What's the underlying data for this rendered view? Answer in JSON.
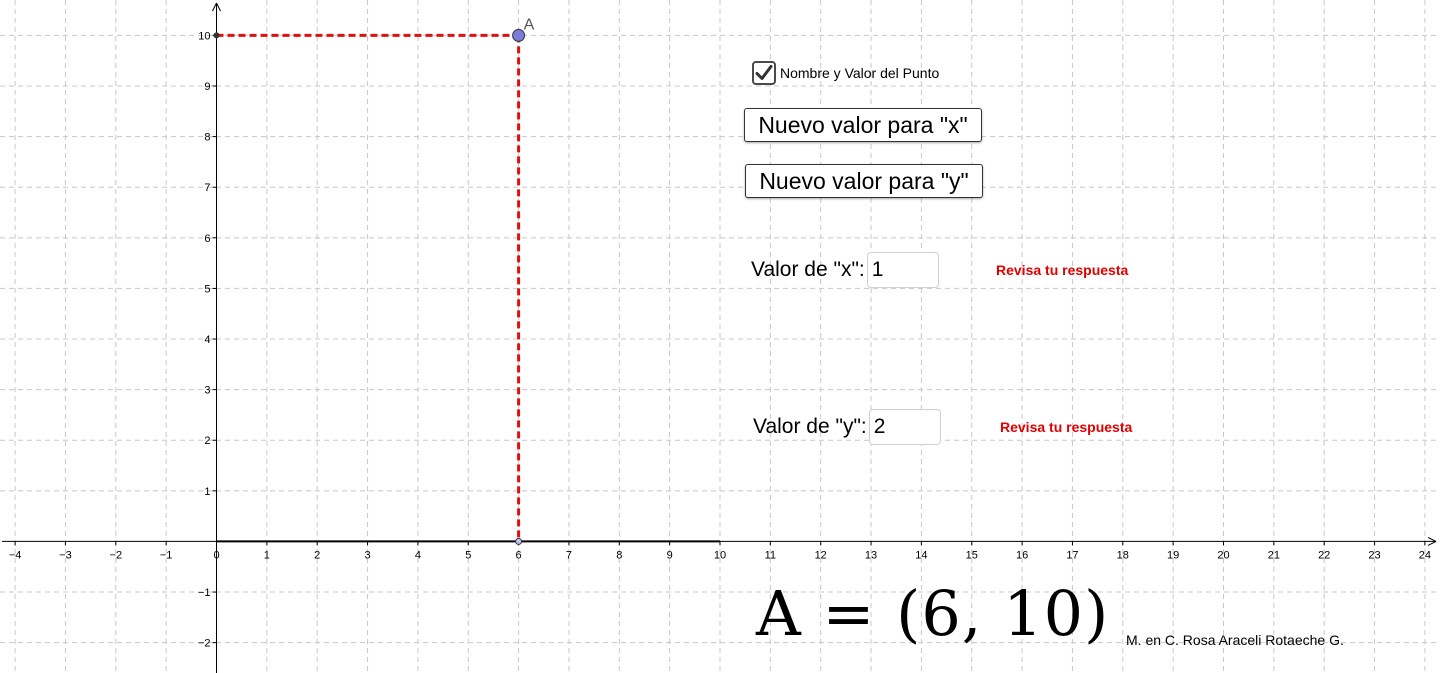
{
  "graph": {
    "x_range": [
      -4.3,
      24.3
    ],
    "y_range": [
      -2.6,
      10.7
    ],
    "x_tick_labels": [
      "−4",
      "−3",
      "−2",
      "−1",
      "0",
      "1",
      "2",
      "3",
      "4",
      "5",
      "6",
      "7",
      "8",
      "9",
      "10",
      "11",
      "12",
      "13",
      "14",
      "15",
      "16",
      "17",
      "18",
      "19",
      "20",
      "21",
      "22",
      "23",
      "24"
    ],
    "x_tick_values": [
      -4,
      -3,
      -2,
      -1,
      0,
      1,
      2,
      3,
      4,
      5,
      6,
      7,
      8,
      9,
      10,
      11,
      12,
      13,
      14,
      15,
      16,
      17,
      18,
      19,
      20,
      21,
      22,
      23,
      24
    ],
    "y_tick_labels": [
      "−2",
      "−1",
      "1",
      "2",
      "3",
      "4",
      "5",
      "6",
      "7",
      "8",
      "9",
      "10"
    ],
    "y_tick_values": [
      -2,
      -1,
      1,
      2,
      3,
      4,
      5,
      6,
      7,
      8,
      9,
      10
    ],
    "grid": true,
    "grid_style": "dashed",
    "point": {
      "name": "A",
      "x": 6,
      "y": 10
    },
    "point_color": "#7b7bdc",
    "guide_color": "#e01010",
    "positive_axis_max": 10
  },
  "controls": {
    "checkbox_label": "Nombre y Valor del Punto",
    "checkbox_checked": true,
    "new_x_button": "Nuevo valor para \"x\"",
    "new_y_button": "Nuevo valor para \"y\"",
    "x_label": "Valor de \"x\":",
    "x_value": "1",
    "y_label": "Valor de \"y\":",
    "y_value": "2",
    "feedback_x": "Revisa tu respuesta",
    "feedback_y": "Revisa tu respuesta"
  },
  "readout": {
    "text": "A = (6, 10)"
  },
  "author": "M. en C. Rosa Araceli Rotaeche G."
}
